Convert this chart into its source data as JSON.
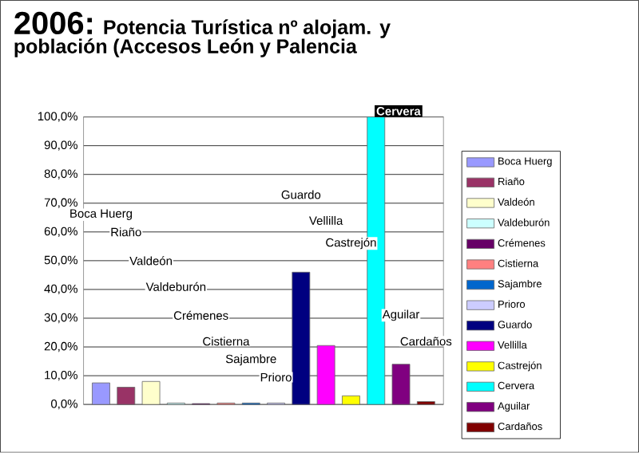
{
  "chart_data": {
    "type": "bar",
    "title": "2006:",
    "subtitle": "Potencia Turística nº alojam. y población (Accesos León y Palencia",
    "categories": [
      null
    ],
    "series": [
      {
        "name": "Boca Huerg",
        "color": "#9999ff",
        "values": [
          7.5
        ]
      },
      {
        "name": "Riaño",
        "color": "#993366",
        "values": [
          6
        ]
      },
      {
        "name": "Valdeón",
        "color": "#ffffcc",
        "values": [
          8
        ]
      },
      {
        "name": "Valdeburón",
        "color": "#ccffff",
        "values": [
          0.5
        ]
      },
      {
        "name": "Crémenes",
        "color": "#660066",
        "values": [
          0.3
        ]
      },
      {
        "name": "Cistierna",
        "color": "#ff8080",
        "values": [
          0.5
        ]
      },
      {
        "name": "Sajambre",
        "color": "#0066cc",
        "values": [
          0.5
        ]
      },
      {
        "name": "Prioro",
        "color": "#ccccff",
        "values": [
          0.5
        ]
      },
      {
        "name": "Guardo",
        "color": "#000080",
        "values": [
          46
        ]
      },
      {
        "name": "Vellilla",
        "color": "#ff00ff",
        "values": [
          20.5
        ]
      },
      {
        "name": "Castrejón",
        "color": "#ffff00",
        "values": [
          3
        ]
      },
      {
        "name": "Cervera",
        "color": "#00ffff",
        "values": [
          100
        ]
      },
      {
        "name": "Aguilar",
        "color": "#800080",
        "values": [
          14
        ]
      },
      {
        "name": "Cardaños",
        "color": "#800000",
        "values": [
          1
        ]
      }
    ],
    "annotations": [
      "Boca Huerg",
      "Riaño",
      "Valdeón",
      "Valdeburón",
      "Crémenes",
      "Cistierna",
      "Sajambre",
      "Prioro",
      "Guardo",
      "Vellilla",
      "Castrejón",
      "Cervera",
      "Aguilar",
      "Cardaños"
    ],
    "ylim": [
      0,
      100
    ],
    "yticks": [
      {
        "value": 0,
        "label": "0,0%"
      },
      {
        "value": 10,
        "label": "10,0%"
      },
      {
        "value": 20,
        "label": "20,0%"
      },
      {
        "value": 30,
        "label": "30,0%"
      },
      {
        "value": 40,
        "label": "40,0%"
      },
      {
        "value": 50,
        "label": "50,0%"
      },
      {
        "value": 60,
        "label": "60,0%"
      },
      {
        "value": 70,
        "label": "70,0%"
      },
      {
        "value": 80,
        "label": "80,0%"
      },
      {
        "value": 90,
        "label": "90,0%"
      },
      {
        "value": 100,
        "label": "100,0%"
      }
    ],
    "grid": "y",
    "legend": "right"
  }
}
